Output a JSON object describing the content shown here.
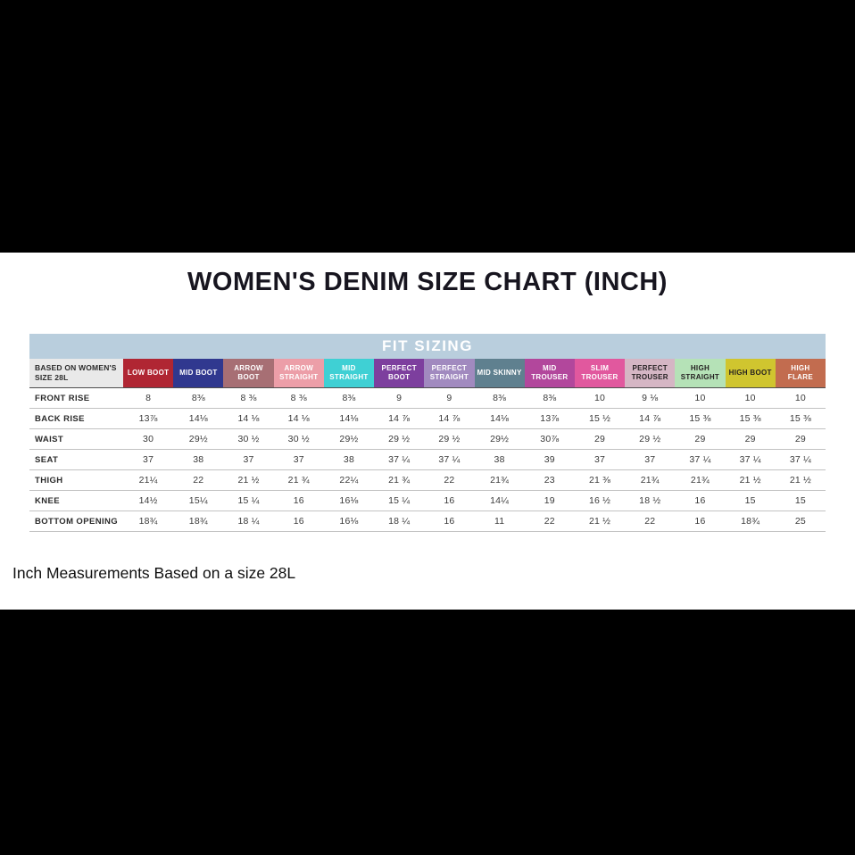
{
  "chart_data": {
    "type": "table",
    "title": "WOMEN'S DENIM SIZE CHART (INCH)",
    "banner": "FIT SIZING",
    "corner_label": "BASED ON WOMEN'S\nSIZE 28L",
    "note": "Inch Measurements Based on a size 28L",
    "banner_bg": "#b9cedd",
    "banner_fg": "#ffffff",
    "columns": [
      {
        "label": "LOW BOOT",
        "bg": "#b02633",
        "fg": "#ffffff"
      },
      {
        "label": "MID BOOT",
        "bg": "#30388f",
        "fg": "#ffffff"
      },
      {
        "label": "ARROW BOOT",
        "bg": "#a76f74",
        "fg": "#ffffff"
      },
      {
        "label": "ARROW STRAIGHT",
        "bg": "#ec9ea8",
        "fg": "#ffffff"
      },
      {
        "label": "MID STRAIGHT",
        "bg": "#3fd0d4",
        "fg": "#ffffff"
      },
      {
        "label": "PERFECT BOOT",
        "bg": "#7d3f9e",
        "fg": "#ffffff"
      },
      {
        "label": "PERFECT STRAIGHT",
        "bg": "#a18abf",
        "fg": "#ffffff"
      },
      {
        "label": "MID SKINNY",
        "bg": "#5f808f",
        "fg": "#ffffff"
      },
      {
        "label": "MID TROUSER",
        "bg": "#b2479c",
        "fg": "#ffffff"
      },
      {
        "label": "SLIM TROUSER",
        "bg": "#e1589e",
        "fg": "#ffffff"
      },
      {
        "label": "PERFECT TROUSER",
        "bg": "#d5b6c4",
        "fg": "#231f20"
      },
      {
        "label": "HIGH STRAIGHT",
        "bg": "#b5e2b7",
        "fg": "#231f20"
      },
      {
        "label": "HIGH BOOT",
        "bg": "#d0c52f",
        "fg": "#231f20"
      },
      {
        "label": "HIGH FLARE",
        "bg": "#c26c4f",
        "fg": "#ffffff"
      }
    ],
    "rows": [
      {
        "label": "FRONT RISE",
        "values": [
          "8",
          "8⅜",
          "8 ⅜",
          "8 ⅜",
          "8⅜",
          "9",
          "9",
          "8⅜",
          "8⅜",
          "10",
          "9 ⅛",
          "10",
          "10",
          "10"
        ]
      },
      {
        "label": "BACK RISE",
        "values": [
          "13⅞",
          "14⅛",
          "14 ⅛",
          "14 ⅛",
          "14⅛",
          "14 ⅞",
          "14 ⅞",
          "14⅛",
          "13⅞",
          "15 ½",
          "14 ⅞",
          "15 ⅜",
          "15 ⅜",
          "15 ⅜"
        ]
      },
      {
        "label": "WAIST",
        "values": [
          "30",
          "29½",
          "30 ½",
          "30 ½",
          "29½",
          "29 ½",
          "29 ½",
          "29½",
          "30⅞",
          "29",
          "29 ½",
          "29",
          "29",
          "29"
        ]
      },
      {
        "label": "SEAT",
        "values": [
          "37",
          "38",
          "37",
          "37",
          "38",
          "37 ¼",
          "37 ¼",
          "38",
          "39",
          "37",
          "37",
          "37 ¼",
          "37 ¼",
          "37 ¼"
        ]
      },
      {
        "label": "THIGH",
        "values": [
          "21¼",
          "22",
          "21 ½",
          "21 ¾",
          "22¼",
          "21 ¾",
          "22",
          "21¾",
          "23",
          "21 ⅜",
          "21¾",
          "21¾",
          "21 ½",
          "21 ½"
        ]
      },
      {
        "label": "KNEE",
        "values": [
          "14½",
          "15¼",
          "15 ¼",
          "16",
          "16⅛",
          "15 ¼",
          "16",
          "14¼",
          "19",
          "16 ½",
          "18 ½",
          "16",
          "15",
          "15"
        ]
      },
      {
        "label": "BOTTOM OPENING",
        "values": [
          "18¾",
          "18¾",
          "18 ¼",
          "16",
          "16⅛",
          "18 ¼",
          "16",
          "11",
          "22",
          "21 ½",
          "22",
          "16",
          "18¾",
          "25"
        ]
      }
    ]
  }
}
